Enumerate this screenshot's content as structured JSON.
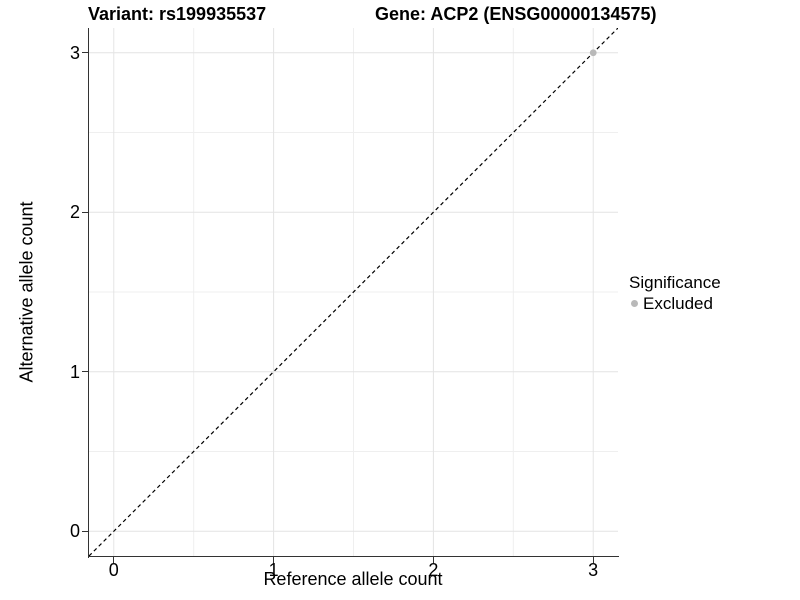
{
  "chart_data": {
    "type": "scatter",
    "titles": {
      "left": "Variant: rs199935537",
      "right": "Gene: ACP2 (ENSG00000134575)"
    },
    "xlabel": "Reference allele count",
    "ylabel": "Alternative allele count",
    "xlim": [
      0,
      3
    ],
    "ylim": [
      0,
      3
    ],
    "x_ticks": [
      0,
      1,
      2,
      3
    ],
    "y_ticks": [
      0,
      1,
      2,
      3
    ],
    "x_tick_labels": [
      "0",
      "1",
      "2",
      "3"
    ],
    "y_tick_labels": [
      "0",
      "1",
      "2",
      "3"
    ],
    "minor_ticks": [
      0.5,
      1.5,
      2.5
    ],
    "grid": "major+minor",
    "identity_line": {
      "slope": 1,
      "intercept": 0,
      "style": "dashed",
      "color": "#000000"
    },
    "series": [
      {
        "name": "Excluded",
        "color": "#b9b9b9",
        "points": [
          [
            3,
            3
          ]
        ]
      }
    ],
    "legend": {
      "title": "Significance",
      "position": "right",
      "items": [
        {
          "label": "Excluded",
          "color": "#b9b9b9",
          "marker": "circle"
        }
      ]
    },
    "colors": {
      "background": "#ffffff",
      "grid_major": "#e4e4e4",
      "grid_minor": "#efefef",
      "axis_line": "#333333",
      "text": "#000000"
    }
  }
}
